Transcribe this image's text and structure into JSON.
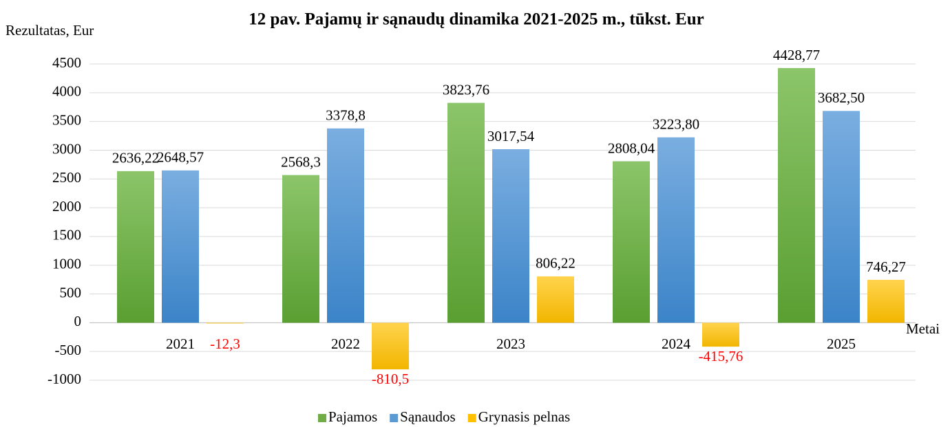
{
  "chart_data": {
    "type": "bar",
    "title": "12 pav. Pajamų ir sąnaudų dinamika 2021-2025 m., tūkst. Eur",
    "y_axis_label": "Rezultatas, Eur",
    "x_axis_label": "Metai",
    "categories": [
      "2021",
      "2022",
      "2023",
      "2024",
      "2025"
    ],
    "series": [
      {
        "name": "Pajamos",
        "color": "#70ad47",
        "values": [
          2636.22,
          2568.3,
          3823.76,
          2808.04,
          4428.77
        ],
        "value_labels": [
          "2636,22",
          "2568,3",
          "3823,76",
          "2808,04",
          "4428,77"
        ]
      },
      {
        "name": "Sąnaudos",
        "color": "#5b9bd5",
        "values": [
          2648.57,
          3378.8,
          3017.54,
          3223.8,
          3682.5
        ],
        "value_labels": [
          "2648,57",
          "3378,8",
          "3017,54",
          "3223,80",
          "3682,50"
        ]
      },
      {
        "name": "Grynasis pelnas",
        "color": "#ffc000",
        "values": [
          -12.3,
          -810.5,
          806.22,
          -415.76,
          746.27
        ],
        "value_labels": [
          "-12,3",
          "-810,5",
          "806,22",
          "-415,76",
          "746,27"
        ]
      }
    ],
    "negative_label_color": "#ff0000",
    "ylim": [
      -1000,
      4500
    ],
    "yticks": [
      -1000,
      -500,
      0,
      500,
      1000,
      1500,
      2000,
      2500,
      3000,
      3500,
      4000,
      4500
    ],
    "grid": true,
    "legend": "bottom"
  }
}
